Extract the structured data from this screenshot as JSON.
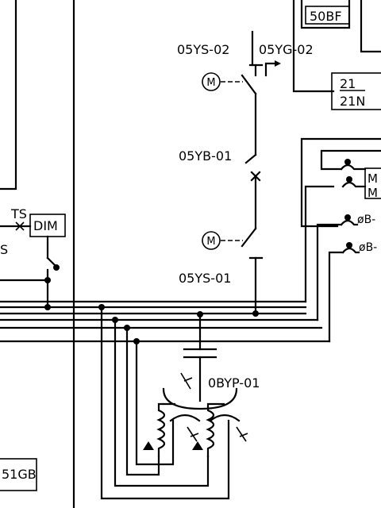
{
  "labels": {
    "sw_top": "05YS-02",
    "sw_ground": "05YG-02",
    "breaker": "05YB-01",
    "sw_bottom": "05YS-01",
    "vt": "0BYP-01",
    "ts": "TS",
    "dim": "DIM",
    "relay_50bf": "50BF",
    "relay_21_top": "21",
    "relay_21_bottom": "21N",
    "motor_top": "M",
    "motor_bottom": "M",
    "phase_b1": "øB-",
    "phase_b2": "øB-",
    "relay_51gb": "51GB",
    "cut_s": "S",
    "motor_box_1": "M",
    "motor_box_2": "M"
  },
  "colors": {
    "line": "#000000",
    "background": "#ffffff"
  }
}
